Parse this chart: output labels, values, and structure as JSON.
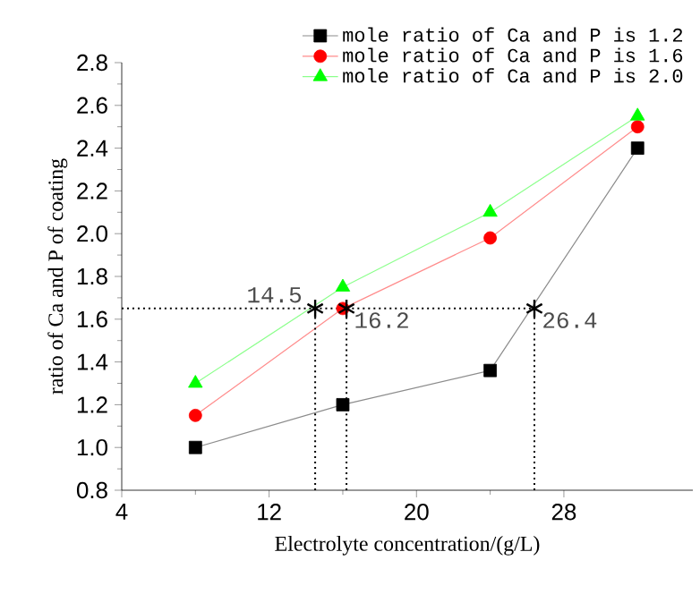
{
  "chart_data": {
    "type": "line",
    "xlabel": "Electrolyte concentration/(g/L)",
    "ylabel": "ratio of Ca and P of coating",
    "xlim": [
      4,
      35
    ],
    "xticks": [
      4,
      12,
      20,
      28
    ],
    "ylim": [
      0.8,
      2.8
    ],
    "yticks": [
      0.8,
      {
        "value": 1.0,
        "label": "1.0"
      },
      1.2,
      1.4,
      1.6,
      1.8,
      {
        "value": 2.0,
        "label": "2.0"
      },
      2.2,
      2.4,
      2.6,
      2.8
    ],
    "legend": "top right",
    "grid": false,
    "series": [
      {
        "name": "mole ratio of Ca and P is 1.2",
        "color": "#000000",
        "marker": "square",
        "x": [
          8,
          16,
          24,
          32
        ],
        "values": [
          1.0,
          1.2,
          1.36,
          2.4
        ]
      },
      {
        "name": "mole ratio of Ca and P is 1.6",
        "color": "#ff0000",
        "marker": "circle",
        "x": [
          8,
          16,
          24,
          32
        ],
        "values": [
          1.15,
          1.65,
          1.98,
          2.5
        ]
      },
      {
        "name": "mole ratio of Ca and P is 2.0",
        "color": "#00ff00",
        "marker": "triangle",
        "x": [
          8,
          16,
          24,
          32
        ],
        "values": [
          1.3,
          1.75,
          2.1,
          2.55
        ]
      },
      {
        "type": "line",
        "color": "#000000",
        "marker": "none",
        "line_style": "dotted",
        "x": [
          4,
          26.4
        ],
        "values": [
          1.65,
          1.65
        ]
      },
      {
        "type": "line",
        "color": "#000000",
        "marker": "none",
        "line_style": "dotted",
        "x": [
          14.5,
          14.5
        ],
        "values": [
          0.8,
          1.65
        ]
      },
      {
        "type": "line",
        "color": "#000000",
        "marker": "none",
        "line_style": "dotted",
        "x": [
          16.2,
          16.2
        ],
        "values": [
          0.8,
          1.65
        ]
      },
      {
        "type": "line",
        "color": "#000000",
        "marker": "none",
        "line_style": "dotted",
        "x": [
          26.4,
          26.4
        ],
        "values": [
          0.8,
          1.65
        ]
      },
      {
        "type": "scatter",
        "color": "#000000",
        "marker": "cross",
        "x": [
          14.5,
          16.2,
          26.4
        ],
        "values": [
          1.65,
          1.65,
          1.65
        ]
      }
    ],
    "annotations": [
      {
        "text": "14.5",
        "x": 14.5,
        "y": 1.65
      },
      {
        "text": "16.2",
        "x": 16.2,
        "y": 1.65
      },
      {
        "text": "26.4",
        "x": 26.4,
        "y": 1.65
      }
    ]
  }
}
